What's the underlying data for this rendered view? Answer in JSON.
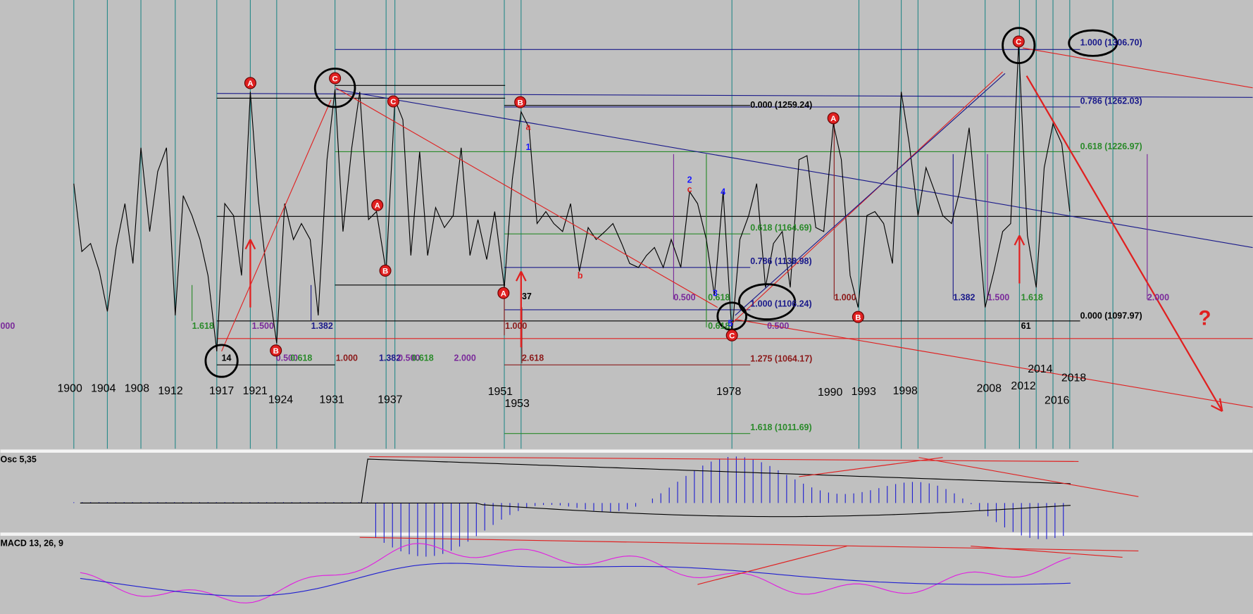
{
  "year_labels": [
    "1900",
    "1904",
    "1908",
    "1912",
    "1917",
    "1921",
    "1924",
    "1931",
    "1937",
    "1951",
    "1953",
    "1978",
    "1990",
    "1993",
    "1998",
    "2008",
    "2012",
    "2014",
    "2018",
    "2016"
  ],
  "fib_labels": [
    "1.000 (1306.70)",
    "0.786 (1262.03)",
    "0.618 (1226.97)",
    "0.000 (1259.24)",
    "0.618 (1164.69)",
    "0.786 (1138.98)",
    "1.000 (1106.24)",
    "0.000 (1097.97)",
    "1.275 (1064.17)",
    "1.618 (1011.69)"
  ],
  "ratio_labels": [
    "000",
    "1.618",
    "1.500",
    "1.382",
    "0.500",
    "0.618",
    "1.000",
    "1.382",
    "0.500",
    "0.618",
    "2.000",
    "1.000",
    "2.618",
    "0.500",
    "0.618",
    "0.618",
    "0.500",
    "1.000",
    "1.382",
    "1.500",
    "1.618",
    "2.000"
  ],
  "count_labels": [
    "14",
    "37",
    "61"
  ],
  "wave_labels": [
    "A",
    "C",
    "C",
    "A",
    "B",
    "B",
    "B",
    "A",
    "C",
    "A",
    "B",
    "C"
  ],
  "sub_labels": [
    "a",
    "b",
    "c",
    "1",
    "2",
    "4",
    "3",
    "5"
  ],
  "annotation": "?",
  "panels": {
    "osc": "Osc 5,35",
    "macd": "MACD 13, 26, 9"
  }
}
